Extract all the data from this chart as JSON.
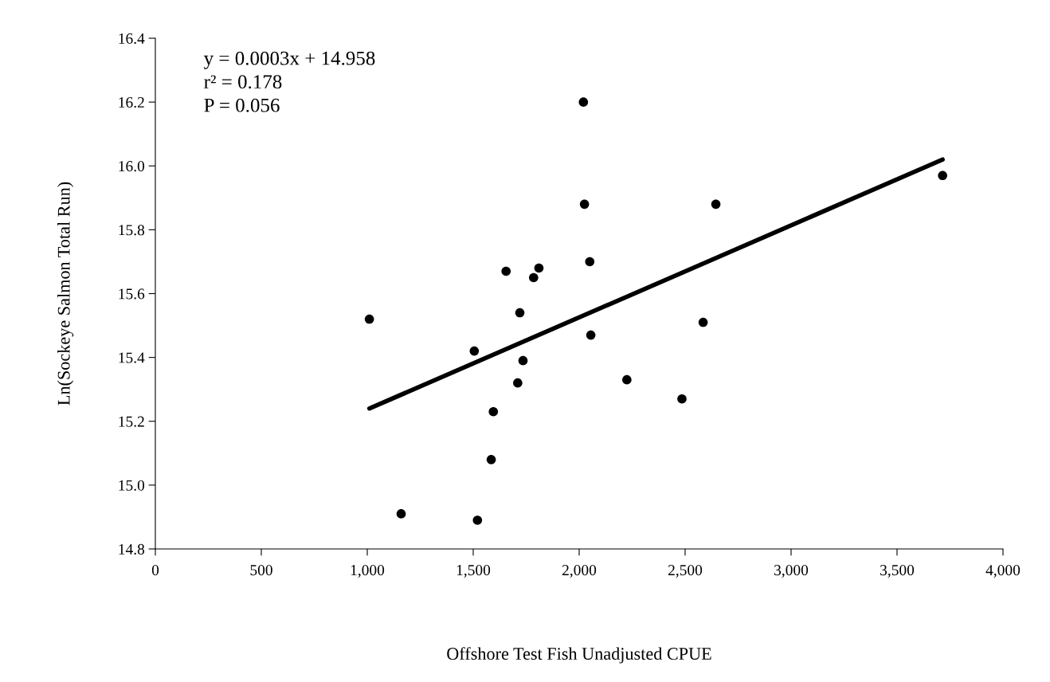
{
  "chart_data": {
    "type": "scatter",
    "xlabel": "Offshore Test Fish Unadjusted CPUE",
    "ylabel": "Ln(Sockeye Salmon Total Run)",
    "xlim": [
      0,
      4000
    ],
    "xticks": [
      0,
      {
        "value": 500,
        "label": "500"
      },
      {
        "value": 1000,
        "label": "1,000"
      },
      {
        "value": 1500,
        "label": "1,500"
      },
      {
        "value": 2000,
        "label": "2,000"
      },
      {
        "value": 2500,
        "label": "2,500"
      },
      {
        "value": 3000,
        "label": "3,000"
      },
      {
        "value": 3500,
        "label": "3,500"
      },
      {
        "value": 4000,
        "label": "4,000"
      }
    ],
    "ylim": [
      14.8,
      16.4
    ],
    "yticks": [
      {
        "value": 14.8,
        "label": "14.8"
      },
      {
        "value": 15.0,
        "label": "15.0"
      },
      {
        "value": 15.2,
        "label": "15.2"
      },
      {
        "value": 15.4,
        "label": "15.4"
      },
      {
        "value": 15.6,
        "label": "15.6"
      },
      {
        "value": 15.8,
        "label": "15.8"
      },
      {
        "value": 16.0,
        "label": "16.0"
      },
      {
        "value": 16.2,
        "label": "16.2"
      },
      {
        "value": 16.4,
        "label": "16.4"
      }
    ],
    "grid": false,
    "series": [
      {
        "marker": "circle",
        "color": "#000000",
        "x": [
          1010,
          1160,
          1505,
          1520,
          1585,
          1595,
          1655,
          1710,
          1720,
          1735,
          1785,
          1810,
          2020,
          2025,
          2050,
          2055,
          2225,
          2485,
          2585,
          2645,
          3715
        ],
        "values": [
          15.52,
          14.91,
          15.42,
          14.89,
          15.08,
          15.23,
          15.67,
          15.32,
          15.54,
          15.39,
          15.65,
          15.68,
          16.2,
          15.88,
          15.7,
          15.47,
          15.33,
          15.27,
          15.51,
          15.88,
          15.97
        ]
      },
      {
        "type": "line",
        "marker": "none",
        "color": "#000000",
        "x": [
          1010,
          3715
        ],
        "values": [
          15.24,
          16.02
        ]
      }
    ],
    "annotations": [
      "y = 0.0003x + 14.958",
      "r² = 0.178",
      "P = 0.056"
    ]
  }
}
